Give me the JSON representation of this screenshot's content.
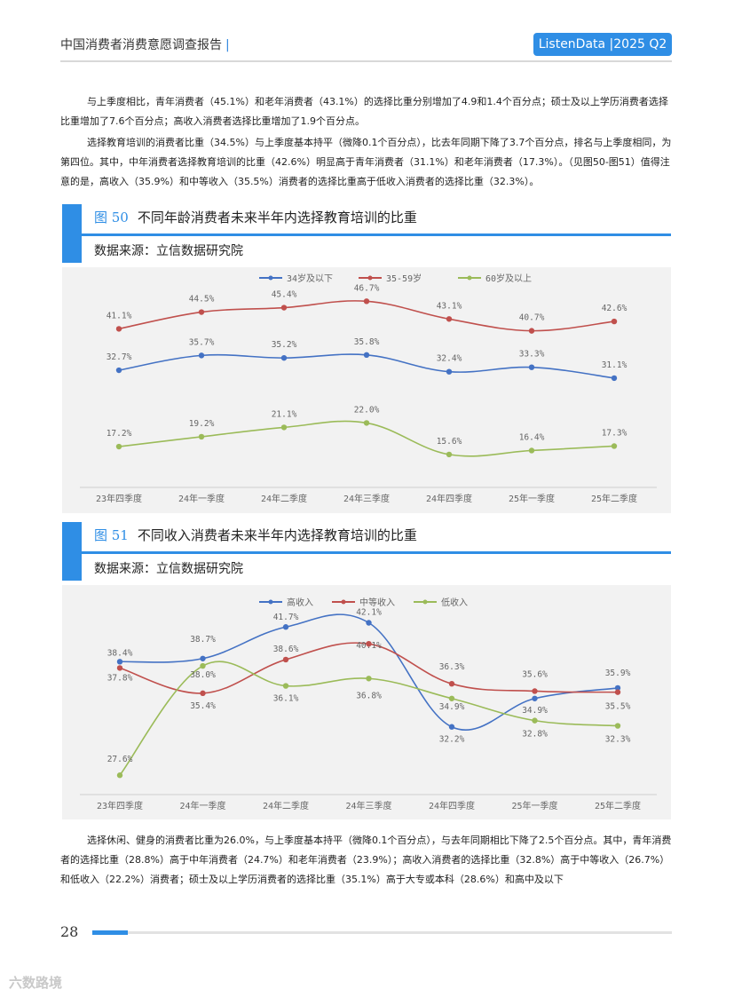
{
  "header": {
    "title": "中国消费者消费意愿调查报告",
    "separator": "|",
    "badge": "ListenData |2025 Q2"
  },
  "paragraphs": {
    "p1": "与上季度相比，青年消费者（45.1%）和老年消费者（43.1%）的选择比重分别增加了4.9和1.4个百分点；硕士及以上学历消费者选择比重增加了7.6个百分点；高收入消费者选择比重增加了1.9个百分点。",
    "p2": "选择教育培训的消费者比重（34.5%）与上季度基本持平（微降0.1个百分点），比去年同期下降了3.7个百分点，排名与上季度相同，为第四位。其中，中年消费者选择教育培训的比重（42.6%）明显高于青年消费者（31.1%）和老年消费者（17.3%）。（见图50-图51）值得注意的是，高收入（35.9%）和中等收入（35.5%）消费者的选择比重高于低收入消费者的选择比重（32.3%）。",
    "p3": "选择休闲、健身的消费者比重为26.0%，与上季度基本持平（微降0.1个百分点），与去年同期相比下降了2.5个百分点。其中，青年消费者的选择比重（28.8%）高于中年消费者（24.7%）和老年消费者（23.9%）；高收入消费者的选择比重（32.8%）高于中等收入（26.7%）和低收入（22.2%）消费者；硕士及以上学历消费者的选择比重（35.1%）高于大专或本科（28.6%）和高中及以下"
  },
  "fig50": {
    "number": "图 50",
    "title": "不同年龄消费者未来半年内选择教育培训的比重",
    "source": "数据来源：立信数据研究院"
  },
  "fig51": {
    "number": "图 51",
    "title": "不同收入消费者未来半年内选择教育培训的比重",
    "source": "数据来源：立信数据研究院"
  },
  "footer": {
    "page": "28",
    "watermark": "六数路境"
  },
  "chart_data": [
    {
      "id": "fig50",
      "type": "line",
      "title": "不同年龄消费者未来半年内选择教育培训的比重",
      "categories": [
        "23年四季度",
        "24年一季度",
        "24年二季度",
        "24年三季度",
        "24年四季度",
        "25年一季度",
        "25年二季度"
      ],
      "ylim": [
        10,
        50
      ],
      "legend": "top-center",
      "grid": false,
      "series": [
        {
          "name": "34岁及以下",
          "color": "#4472c4",
          "values": [
            32.7,
            35.7,
            35.2,
            35.8,
            32.4,
            33.3,
            31.1
          ],
          "labels": [
            "32.7%",
            "35.7%",
            "35.2%",
            "35.8%",
            "32.4%",
            "33.3%",
            "31.1%"
          ]
        },
        {
          "name": "35-59岁",
          "color": "#c0504d",
          "values": [
            41.1,
            44.5,
            45.4,
            46.7,
            43.1,
            40.7,
            42.6
          ],
          "labels": [
            "41.1%",
            "44.5%",
            "45.4%",
            "46.7%",
            "43.1%",
            "40.7%",
            "42.6%"
          ]
        },
        {
          "name": "60岁及以上",
          "color": "#9bbb59",
          "values": [
            17.2,
            19.2,
            21.1,
            22.0,
            15.6,
            16.4,
            17.3
          ],
          "labels": [
            "17.2%",
            "19.2%",
            "21.1%",
            "22.0%",
            "15.6%",
            "16.4%",
            "17.3%"
          ]
        }
      ]
    },
    {
      "id": "fig51",
      "type": "line",
      "title": "不同收入消费者未来半年内选择教育培训的比重",
      "categories": [
        "23年四季度",
        "24年一季度",
        "24年二季度",
        "24年三季度",
        "24年四季度",
        "25年一季度",
        "25年二季度"
      ],
      "ylim": [
        25,
        44
      ],
      "legend": "top-center",
      "grid": false,
      "series": [
        {
          "name": "高收入",
          "color": "#4472c4",
          "values": [
            38.4,
            38.7,
            41.7,
            42.1,
            32.2,
            34.9,
            35.9
          ],
          "labels": [
            "38.4%",
            "38.7%",
            "41.7%",
            "42.1%",
            "32.2%",
            "34.9%",
            "35.9%"
          ]
        },
        {
          "name": "中等收入",
          "color": "#c0504d",
          "values": [
            37.8,
            35.4,
            38.6,
            40.1,
            36.3,
            35.6,
            35.5
          ],
          "labels": [
            "37.8%",
            "35.4%",
            "38.6%",
            "40.1%",
            "36.3%",
            "35.6%",
            "35.5%"
          ]
        },
        {
          "name": "低收入",
          "color": "#9bbb59",
          "values": [
            27.6,
            38.0,
            36.1,
            36.8,
            34.9,
            32.8,
            32.3
          ],
          "labels": [
            "27.6%",
            "38.0%",
            "36.1%",
            "36.8%",
            "34.9%",
            "32.8%",
            "32.3%"
          ]
        }
      ]
    }
  ]
}
